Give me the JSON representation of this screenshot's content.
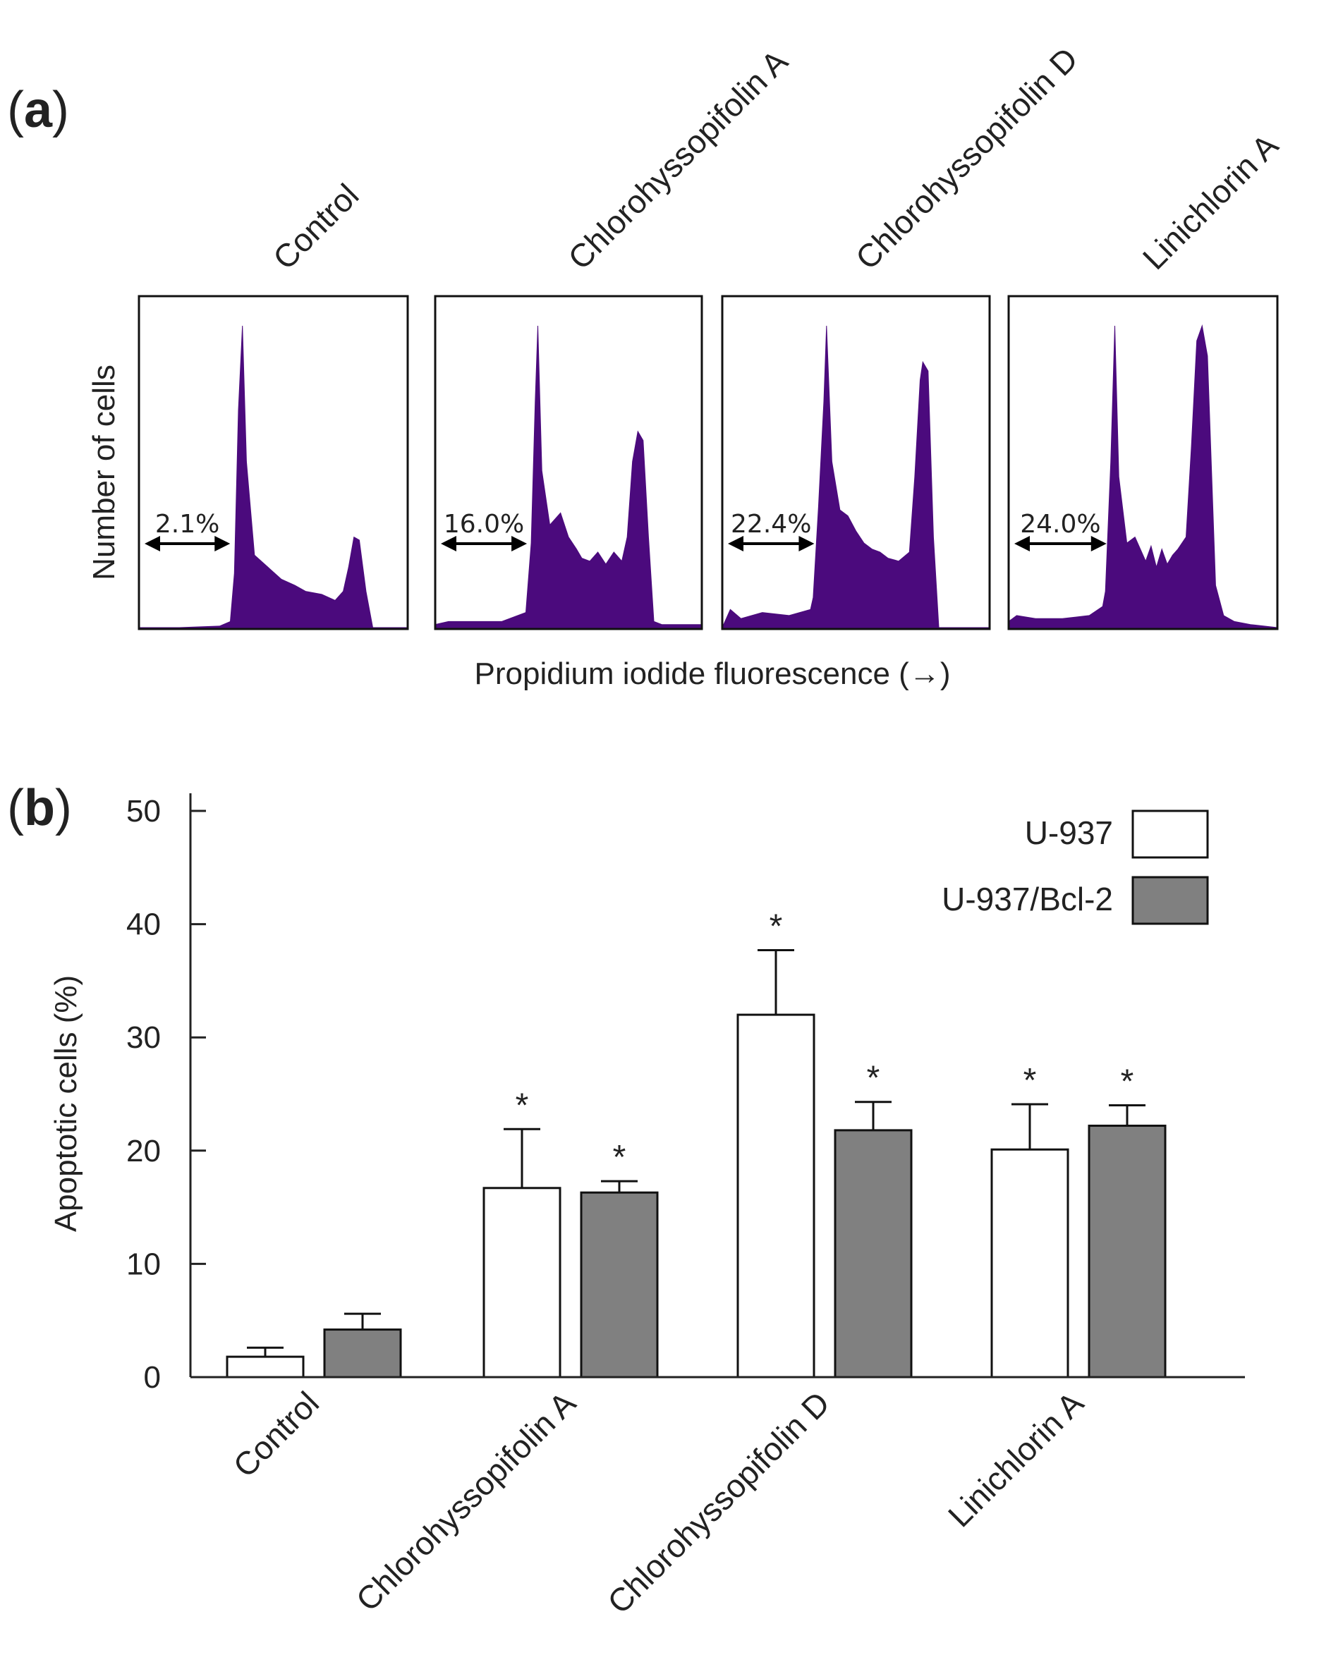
{
  "chart_data": [
    {
      "panel_label": "a",
      "type": "area",
      "ylabel": "Number of cells",
      "xlabel": "Propidium iodide fluorescence (→)",
      "fill_color": "#4b0a7d",
      "panels": [
        {
          "title": "Control",
          "sub_g1_label": "2.1%",
          "sub_g1_percent": 2.1,
          "x": [
            0.0,
            0.15,
            0.3,
            0.34,
            0.355,
            0.37,
            0.385,
            0.4,
            0.43,
            0.48,
            0.53,
            0.58,
            0.62,
            0.68,
            0.73,
            0.76,
            0.78,
            0.8,
            0.82,
            0.845,
            0.87,
            1.0
          ],
          "y": [
            0.0,
            0.0,
            0.005,
            0.02,
            0.18,
            0.72,
            1.0,
            0.55,
            0.24,
            0.2,
            0.16,
            0.14,
            0.12,
            0.11,
            0.09,
            0.12,
            0.2,
            0.3,
            0.29,
            0.12,
            0.0,
            0.0
          ]
        },
        {
          "title": "Chlorohyssopifolin A",
          "sub_g1_label": "16.0%",
          "sub_g1_percent": 16.0,
          "x": [
            0.0,
            0.05,
            0.15,
            0.25,
            0.34,
            0.36,
            0.375,
            0.385,
            0.4,
            0.43,
            0.47,
            0.5,
            0.53,
            0.55,
            0.58,
            0.61,
            0.64,
            0.67,
            0.7,
            0.72,
            0.74,
            0.76,
            0.78,
            0.8,
            0.82,
            0.85,
            1.0
          ],
          "y": [
            0.01,
            0.02,
            0.02,
            0.02,
            0.05,
            0.28,
            0.75,
            1.0,
            0.52,
            0.34,
            0.38,
            0.3,
            0.26,
            0.23,
            0.22,
            0.25,
            0.21,
            0.25,
            0.22,
            0.3,
            0.55,
            0.65,
            0.62,
            0.3,
            0.02,
            0.01,
            0.01
          ]
        },
        {
          "title": "Chlorohyssopifolin D",
          "sub_g1_label": "22.4%",
          "sub_g1_percent": 22.4,
          "x": [
            0.0,
            0.03,
            0.07,
            0.15,
            0.25,
            0.33,
            0.34,
            0.36,
            0.38,
            0.39,
            0.41,
            0.44,
            0.47,
            0.5,
            0.53,
            0.56,
            0.59,
            0.62,
            0.66,
            0.7,
            0.72,
            0.74,
            0.75,
            0.77,
            0.79,
            0.81,
            1.0
          ],
          "y": [
            0.0,
            0.06,
            0.03,
            0.05,
            0.04,
            0.06,
            0.1,
            0.4,
            0.75,
            1.0,
            0.55,
            0.39,
            0.37,
            0.32,
            0.28,
            0.26,
            0.25,
            0.23,
            0.22,
            0.25,
            0.5,
            0.82,
            0.88,
            0.85,
            0.3,
            0.0,
            0.0
          ]
        },
        {
          "title": "Linichlorin A",
          "sub_g1_label": "24.0%",
          "sub_g1_percent": 24.0,
          "x": [
            0.0,
            0.03,
            0.1,
            0.2,
            0.3,
            0.35,
            0.36,
            0.38,
            0.395,
            0.41,
            0.44,
            0.47,
            0.49,
            0.51,
            0.53,
            0.55,
            0.57,
            0.59,
            0.61,
            0.63,
            0.66,
            0.68,
            0.7,
            0.72,
            0.74,
            0.77,
            0.8,
            0.84,
            0.9,
            1.0
          ],
          "y": [
            0.02,
            0.04,
            0.03,
            0.03,
            0.04,
            0.07,
            0.12,
            0.55,
            1.0,
            0.5,
            0.28,
            0.3,
            0.26,
            0.22,
            0.27,
            0.2,
            0.26,
            0.21,
            0.24,
            0.26,
            0.3,
            0.6,
            0.95,
            1.0,
            0.9,
            0.14,
            0.04,
            0.02,
            0.01,
            0.0
          ]
        }
      ]
    },
    {
      "panel_label": "b",
      "type": "bar",
      "title": "",
      "ylabel": "Apoptotic cells (%)",
      "xlabel": "",
      "ylim": [
        0,
        50
      ],
      "yticks": [
        0,
        10,
        20,
        30,
        40,
        50
      ],
      "categories": [
        "Control",
        "Chlorohyssopifolin A",
        "Chlorohyssopifolin D",
        "Linichlorin A"
      ],
      "legend_position": "top-right",
      "significance_marker": "*",
      "series": [
        {
          "name": "U-937",
          "color": "#ffffff",
          "values": [
            1.8,
            16.7,
            32.0,
            20.1
          ],
          "errors": [
            0.8,
            5.2,
            5.7,
            4.0
          ],
          "significant": [
            false,
            true,
            true,
            true
          ]
        },
        {
          "name": "U-937/Bcl-2",
          "color": "#808080",
          "values": [
            4.2,
            16.3,
            21.8,
            22.2
          ],
          "errors": [
            1.4,
            1.0,
            2.5,
            1.8
          ],
          "significant": [
            false,
            true,
            true,
            true
          ]
        }
      ]
    }
  ]
}
